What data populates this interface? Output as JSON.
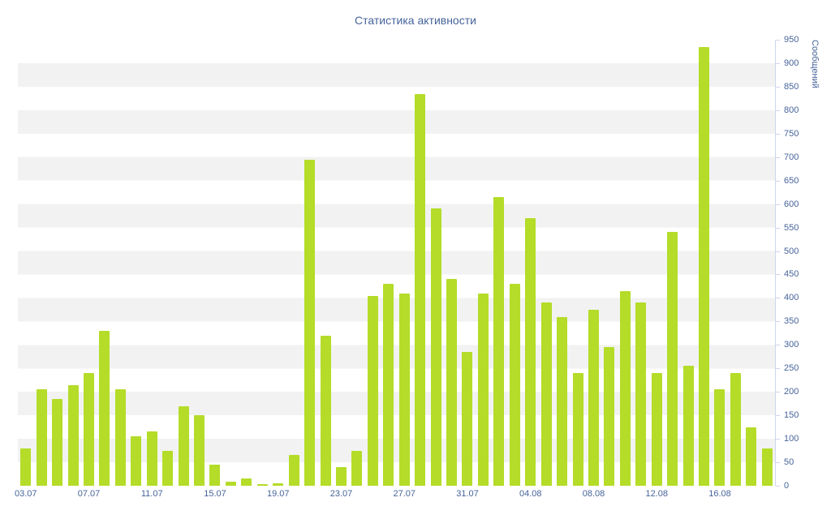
{
  "page": {
    "title": "Статистика активности"
  },
  "chart_data": {
    "type": "bar",
    "title": "Статистика активности",
    "xlabel": "",
    "ylabel": "Сообщений",
    "ylim": [
      0,
      950
    ],
    "y_tick_step": 50,
    "legend": "none",
    "grid": "alternate-horizontal-bands",
    "categories": [
      "03.07",
      "04.07",
      "05.07",
      "06.07",
      "07.07",
      "08.07",
      "09.07",
      "10.07",
      "11.07",
      "12.07",
      "13.07",
      "14.07",
      "15.07",
      "16.07",
      "17.07",
      "18.07",
      "19.07",
      "20.07",
      "21.07",
      "22.07",
      "23.07",
      "24.07",
      "25.07",
      "26.07",
      "27.07",
      "28.07",
      "29.07",
      "30.07",
      "31.07",
      "01.08",
      "02.08",
      "03.08",
      "04.08",
      "05.08",
      "06.08",
      "07.08",
      "08.08",
      "09.08",
      "10.08",
      "11.08",
      "12.08",
      "13.08",
      "14.08",
      "15.08",
      "16.08",
      "17.08",
      "18.08",
      "19.08"
    ],
    "values": [
      80,
      205,
      185,
      215,
      240,
      330,
      205,
      105,
      115,
      75,
      170,
      150,
      45,
      8,
      15,
      3,
      5,
      65,
      695,
      320,
      40,
      75,
      405,
      430,
      410,
      835,
      590,
      440,
      285,
      410,
      615,
      430,
      570,
      390,
      360,
      240,
      375,
      295,
      415,
      390,
      240,
      540,
      255,
      935,
      205,
      240,
      125,
      80
    ],
    "x_tick_labels": [
      "03.07",
      "07.07",
      "11.07",
      "15.07",
      "19.07",
      "23.07",
      "27.07",
      "31.07",
      "04.08",
      "08.08",
      "12.08",
      "16.08"
    ],
    "x_tick_every": 4,
    "y_tick_labels": [
      "0",
      "50",
      "100",
      "150",
      "200",
      "250",
      "300",
      "350",
      "400",
      "450",
      "500",
      "550",
      "600",
      "650",
      "700",
      "750",
      "800",
      "850",
      "900",
      "950"
    ],
    "colors": {
      "bar": "#b4dc28",
      "label": "#46649a",
      "band": "#f2f2f2",
      "background": "#ffffff",
      "axis": "#ccd6eb"
    }
  }
}
